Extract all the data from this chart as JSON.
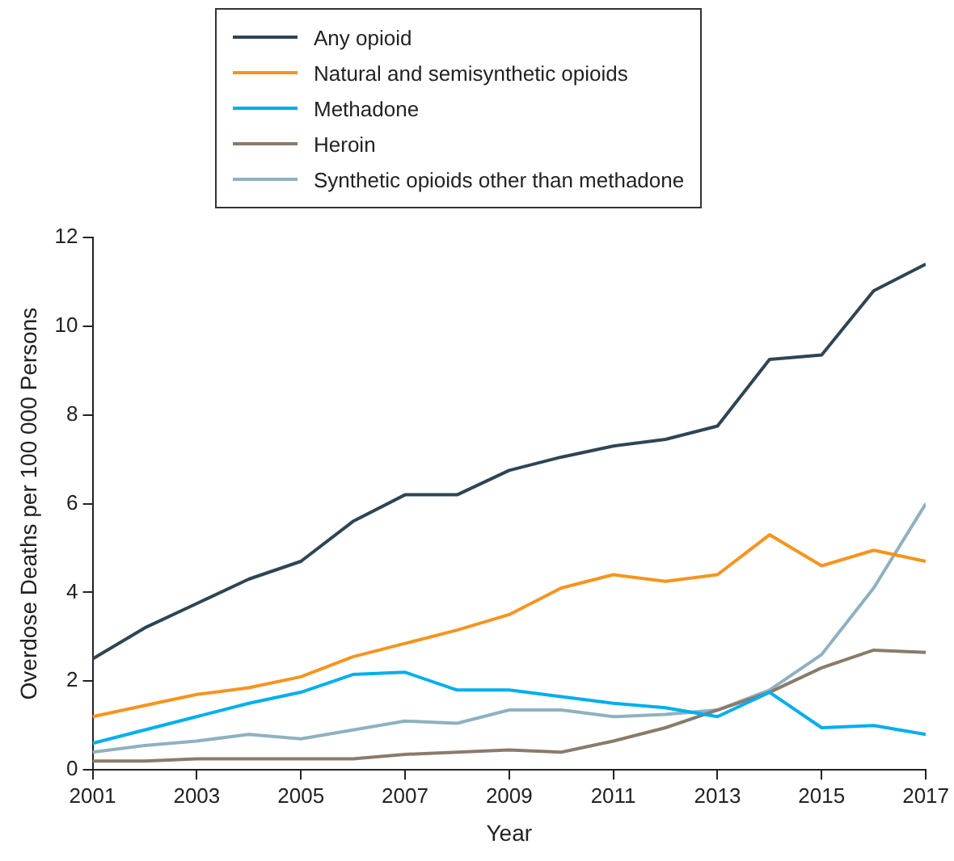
{
  "chart_data": {
    "type": "line",
    "xlabel": "Year",
    "ylabel": "Overdose Deaths per 100 000 Persons",
    "x": [
      2001,
      2002,
      2003,
      2004,
      2005,
      2006,
      2007,
      2008,
      2009,
      2010,
      2011,
      2012,
      2013,
      2014,
      2015,
      2016,
      2017
    ],
    "series": [
      {
        "name": "Any opioid",
        "color": "#2e4553",
        "values": [
          2.5,
          3.2,
          3.75,
          4.3,
          4.7,
          5.6,
          6.2,
          6.2,
          6.75,
          7.05,
          7.3,
          7.45,
          7.75,
          9.25,
          9.35,
          10.8,
          11.4
        ]
      },
      {
        "name": "Natural and semisynthetic opioids",
        "color": "#f7941d",
        "values": [
          1.2,
          1.45,
          1.7,
          1.85,
          2.1,
          2.55,
          2.85,
          3.15,
          3.5,
          4.1,
          4.4,
          4.25,
          4.4,
          5.3,
          4.6,
          4.95,
          4.7
        ]
      },
      {
        "name": "Methadone",
        "color": "#00aeef",
        "values": [
          0.6,
          0.9,
          1.2,
          1.5,
          1.75,
          2.15,
          2.2,
          1.8,
          1.8,
          1.65,
          1.5,
          1.4,
          1.2,
          1.75,
          0.95,
          1.0,
          0.8
        ]
      },
      {
        "name": "Heroin",
        "color": "#8b7b6b",
        "values": [
          0.2,
          0.2,
          0.25,
          0.25,
          0.25,
          0.25,
          0.35,
          0.4,
          0.45,
          0.4,
          0.65,
          0.95,
          1.35,
          1.75,
          2.3,
          2.7,
          2.65
        ]
      },
      {
        "name": "Synthetic opioids other than methadone",
        "color": "#8fb1c0",
        "values": [
          0.4,
          0.55,
          0.65,
          0.8,
          0.7,
          0.9,
          1.1,
          1.05,
          1.35,
          1.35,
          1.2,
          1.25,
          1.35,
          1.8,
          2.6,
          4.1,
          6.0
        ]
      }
    ],
    "xlim": [
      2001,
      2017
    ],
    "xticks": [
      2001,
      2003,
      2005,
      2007,
      2009,
      2011,
      2013,
      2015,
      2017
    ],
    "ylim": [
      0,
      12
    ],
    "yticks": [
      0,
      2,
      4,
      6,
      8,
      10,
      12
    ],
    "grid": false,
    "legend": "top",
    "marker": "none",
    "line_style": "solid"
  }
}
